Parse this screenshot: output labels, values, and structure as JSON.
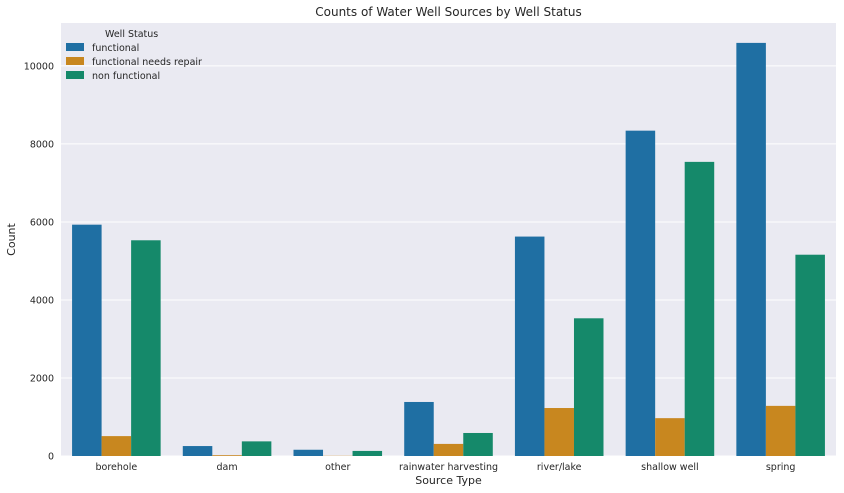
{
  "chart_data": {
    "type": "bar",
    "title": "Counts of Water Well Sources by Well Status",
    "xlabel": "Source Type",
    "ylabel": "Count",
    "ylim": [
      0,
      11100
    ],
    "yticks": [
      0,
      2000,
      4000,
      6000,
      8000,
      10000
    ],
    "grid": true,
    "legend": {
      "title": "Well Status",
      "placement": "top-left"
    },
    "categories": [
      "borehole",
      "dam",
      "other",
      "rainwater harvesting",
      "river/lake",
      "shallow well",
      "spring"
    ],
    "series": [
      {
        "name": "functional",
        "color": "#1f6fa3",
        "values": [
          5930,
          255,
          160,
          1385,
          5625,
          8340,
          10590
        ]
      },
      {
        "name": "functional needs repair",
        "color": "#c8871f",
        "values": [
          510,
          20,
          5,
          310,
          1230,
          970,
          1285
        ]
      },
      {
        "name": "non functional",
        "color": "#15896a",
        "values": [
          5530,
          375,
          130,
          590,
          3530,
          7540,
          5160
        ]
      }
    ]
  }
}
